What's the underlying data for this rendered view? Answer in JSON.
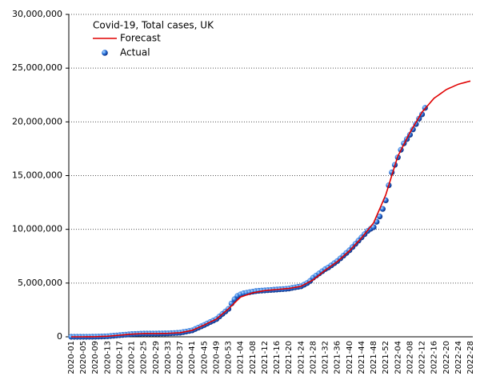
{
  "chart_data": {
    "type": "line_scatter",
    "legend_title": "Covid-19, Total cases, UK",
    "legend": "upper left",
    "grid": true,
    "categories": [
      "2020-01",
      null,
      null,
      null,
      "2020-05",
      null,
      null,
      null,
      "2020-09",
      null,
      null,
      null,
      "2020-13",
      null,
      null,
      null,
      "2020-17",
      null,
      null,
      null,
      "2020-21",
      null,
      null,
      null,
      "2020-25",
      null,
      null,
      null,
      "2020-29",
      null,
      null,
      null,
      "2020-33",
      null,
      null,
      null,
      "2020-37",
      null,
      null,
      null,
      "2020-41",
      null,
      null,
      null,
      "2020-45",
      null,
      null,
      null,
      "2020-49",
      null,
      null,
      null,
      "2020-53",
      null,
      null,
      null,
      "2021-04",
      null,
      null,
      null,
      "2021-08",
      null,
      null,
      null,
      "2021-12",
      null,
      null,
      null,
      "2021-16",
      null,
      null,
      null,
      "2021-20",
      null,
      null,
      null,
      "2021-24",
      null,
      null,
      null,
      "2021-28",
      null,
      null,
      null,
      "2021-32",
      null,
      null,
      null,
      "2021-36",
      null,
      null,
      null,
      "2021-40",
      null,
      null,
      null,
      "2021-44",
      null,
      null,
      null,
      "2021-48",
      null,
      null,
      null,
      "2021-52",
      null,
      null,
      null,
      "2022-04",
      null,
      null,
      null,
      "2022-08",
      null,
      null,
      null,
      "2022-12",
      null,
      null,
      null,
      "2022-16",
      null,
      null,
      null,
      "2022-20",
      null,
      null,
      null,
      "2022-24",
      null,
      null,
      null,
      "2022-28"
    ],
    "series": [
      {
        "name": "Forecast",
        "style": "line",
        "color": "#e00000",
        "values": [
          0,
          0,
          0,
          0,
          0,
          2500,
          5000,
          7500,
          10000,
          20000,
          30000,
          40000,
          50000,
          75000,
          100000,
          125000,
          150000,
          175000,
          200000,
          225000,
          250000,
          262000,
          275000,
          288000,
          300000,
          300000,
          300000,
          300000,
          300000,
          305000,
          310000,
          315000,
          320000,
          335000,
          350000,
          365000,
          380000,
          435000,
          490000,
          545000,
          600000,
          725000,
          850000,
          975000,
          1100000,
          1240000,
          1380000,
          1510000,
          1650000,
          1890000,
          2130000,
          2360000,
          2600000,
          2880000,
          3150000,
          3430000,
          3700000,
          3800000,
          3900000,
          4000000,
          4100000,
          4150000,
          4200000,
          4250000,
          4300000,
          4330000,
          4350000,
          4380000,
          4400000,
          4430000,
          4450000,
          4480000,
          4500000,
          4550000,
          4600000,
          4650000,
          4700000,
          4850000,
          5000000,
          5150000,
          5300000,
          5530000,
          5750000,
          5980000,
          6200000,
          6400000,
          6600000,
          6800000,
          7000000,
          7250000,
          7500000,
          7750000,
          8000000,
          8300000,
          8600000,
          8900000,
          9200000,
          9550000,
          9900000,
          10250000,
          10600000,
          11250000,
          11900000,
          12550000,
          13200000,
          14100000,
          15000000,
          15900000,
          16800000,
          17350000,
          17900000,
          18450000,
          19000000,
          19480000,
          19950000,
          20430000,
          20900000,
          21230000,
          21550000,
          21880000,
          22200000,
          22400000,
          22600000,
          22800000,
          23000000,
          23130000,
          23250000,
          23380000,
          23500000,
          23580000,
          23650000,
          23730000,
          23800000
        ]
      },
      {
        "name": "Actual",
        "style": "points",
        "color": "#1f5fd0",
        "values": [
          0,
          0,
          0,
          0,
          0,
          2500,
          5000,
          7500,
          10000,
          20000,
          30000,
          40000,
          50000,
          75000,
          100000,
          125000,
          150000,
          175000,
          200000,
          225000,
          250000,
          262000,
          275000,
          288000,
          300000,
          300000,
          300000,
          300000,
          300000,
          305000,
          310000,
          315000,
          320000,
          335000,
          350000,
          365000,
          380000,
          435000,
          490000,
          545000,
          600000,
          725000,
          850000,
          975000,
          1100000,
          1240000,
          1380000,
          1510000,
          1650000,
          1890000,
          2130000,
          2360000,
          2600000,
          3100000,
          3500000,
          3800000,
          3950000,
          4050000,
          4100000,
          4150000,
          4200000,
          4250000,
          4280000,
          4300000,
          4320000,
          4340000,
          4360000,
          4380000,
          4400000,
          4420000,
          4440000,
          4460000,
          4490000,
          4550000,
          4600000,
          4650000,
          4700000,
          4850000,
          5000000,
          5200000,
          5500000,
          5700000,
          5900000,
          6100000,
          6300000,
          6450000,
          6650000,
          6850000,
          7050000,
          7300000,
          7550000,
          7800000,
          8050000,
          8350000,
          8650000,
          8950000,
          9250000,
          9550000,
          9850000,
          10050000,
          10200000,
          10700000,
          11200000,
          11900000,
          12700000,
          14100000,
          15300000,
          16000000,
          16700000,
          17400000,
          18000000,
          18400000,
          18800000,
          19300000,
          19800000,
          20300000,
          20700000,
          21300000,
          null,
          null,
          null,
          null,
          null,
          null,
          null,
          null,
          null,
          null,
          null,
          null,
          null,
          null,
          null
        ]
      }
    ],
    "ylim": [
      0,
      30000000
    ],
    "yticks": [
      0,
      {
        "value": 5000000,
        "label": "5,000,000"
      },
      {
        "value": 10000000,
        "label": "10,000,000"
      },
      {
        "value": 15000000,
        "label": "15,000,000"
      },
      {
        "value": 20000000,
        "label": "20,000,000"
      },
      {
        "value": 25000000,
        "label": "25,000,000"
      },
      {
        "value": 30000000,
        "label": "30,000,000"
      }
    ]
  }
}
